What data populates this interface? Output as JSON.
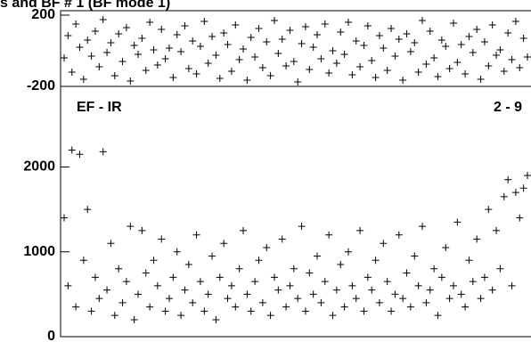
{
  "chart_data": [
    {
      "type": "scatter",
      "title": "s and BF # 1 (BF mode 1)",
      "color": "#000000",
      "ylim": [
        -200,
        225
      ],
      "yticks": [
        -200,
        200
      ],
      "values": [
        -40,
        85,
        -120,
        150,
        20,
        -160,
        60,
        -30,
        110,
        -90,
        175,
        -10,
        45,
        -140,
        95,
        -60,
        130,
        -170,
        30,
        -20,
        70,
        -110,
        160,
        5,
        -80,
        120,
        -45,
        15,
        -150,
        90,
        -5,
        140,
        -100,
        55,
        -130,
        25,
        165,
        -70,
        80,
        -25,
        -155,
        100,
        35,
        -115,
        145,
        -50,
        10,
        -165,
        75,
        -35,
        125,
        -95,
        50,
        -140,
        170,
        -15,
        65,
        -85,
        115,
        -60,
        -175,
        40,
        135,
        -105,
        20,
        90,
        -45,
        150,
        -125,
        0,
        -70,
        105,
        -20,
        160,
        -135,
        55,
        -90,
        30,
        140,
        -55,
        -150,
        85,
        15,
        -110,
        125,
        -30,
        65,
        -165,
        95,
        -5,
        45,
        -120,
        170,
        -75,
        110,
        -40,
        -145,
        60,
        25,
        -100,
        155,
        -65,
        35,
        -130,
        80,
        -10,
        120,
        -160,
        50,
        -85,
        145,
        -25,
        5,
        -115,
        100,
        -50,
        165,
        -95,
        70,
        -35
      ]
    },
    {
      "type": "scatter",
      "label_left": "EF - IR",
      "label_right": "2 - 9",
      "color": "#000000",
      "ylim": [
        0,
        2950
      ],
      "yticks": [
        0,
        1000,
        2000
      ],
      "values": [
        1400,
        600,
        2200,
        350,
        2150,
        900,
        1500,
        300,
        700,
        450,
        2180,
        550,
        1100,
        250,
        800,
        400,
        650,
        1300,
        200,
        500,
        1250,
        750,
        350,
        900,
        600,
        1150,
        300,
        450,
        700,
        1000,
        250,
        550,
        850,
        400,
        1200,
        650,
        300,
        500,
        950,
        200,
        700,
        1100,
        450,
        600,
        350,
        800,
        1250,
        500,
        300,
        650,
        900,
        400,
        1050,
        250,
        700,
        550,
        1150,
        350,
        600,
        800,
        450,
        1300,
        300,
        750,
        500,
        950,
        400,
        650,
        1200,
        250,
        550,
        850,
        350,
        1000,
        600,
        450,
        1250,
        300,
        700,
        550,
        900,
        400,
        1100,
        650,
        300,
        500,
        1200,
        450,
        750,
        350,
        950,
        600,
        1300,
        400,
        550,
        800,
        250,
        700,
        1050,
        450,
        600,
        1350,
        500,
        350,
        900,
        650,
        1150,
        450,
        700,
        1500,
        550,
        1250,
        800,
        1650,
        1850,
        600,
        1700,
        1400,
        1750,
        1900
      ]
    }
  ]
}
